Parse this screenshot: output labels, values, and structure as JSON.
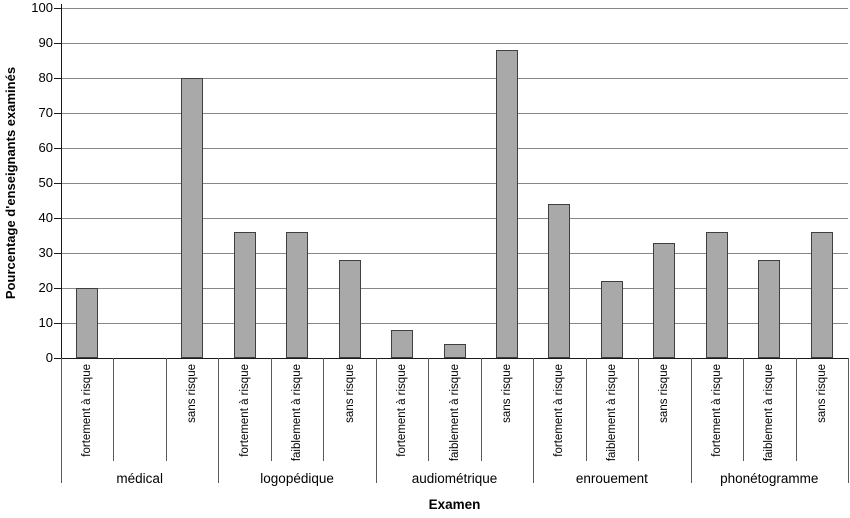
{
  "chart_data": {
    "type": "bar",
    "title": "",
    "xlabel": "Examen",
    "ylabel": "Pourcentage d'enseignants examinés",
    "ylim": [
      0,
      100
    ],
    "yticks": [
      0,
      10,
      20,
      30,
      40,
      50,
      60,
      70,
      80,
      90,
      100
    ],
    "grid": "horizontal",
    "legend": "none",
    "bar_fill_color": "#a9a9a9",
    "bar_border_color": "#3f3f3f",
    "gridline_color": "#878787",
    "groups": [
      {
        "label": "médical",
        "bars": [
          {
            "label": "fortement à risque",
            "value": 20
          },
          {
            "label": "",
            "value": null
          },
          {
            "label": "sans risque",
            "value": 80
          }
        ]
      },
      {
        "label": "logopédique",
        "bars": [
          {
            "label": "fortement à risque",
            "value": 36
          },
          {
            "label": "faiblement à risque",
            "value": 36
          },
          {
            "label": "sans risque",
            "value": 28
          }
        ]
      },
      {
        "label": "audiométrique",
        "bars": [
          {
            "label": "fortement à risque",
            "value": 8
          },
          {
            "label": "faiblement à risque",
            "value": 4
          },
          {
            "label": "sans risque",
            "value": 88
          }
        ]
      },
      {
        "label": "enrouement",
        "bars": [
          {
            "label": "fortement à risque",
            "value": 44
          },
          {
            "label": "faiblement à risque",
            "value": 22
          },
          {
            "label": "sans risque",
            "value": 33
          }
        ]
      },
      {
        "label": "phonétogramme",
        "bars": [
          {
            "label": "fortement à risque",
            "value": 36
          },
          {
            "label": "faiblement à risque",
            "value": 28
          },
          {
            "label": "sans risque",
            "value": 36
          }
        ]
      }
    ]
  }
}
